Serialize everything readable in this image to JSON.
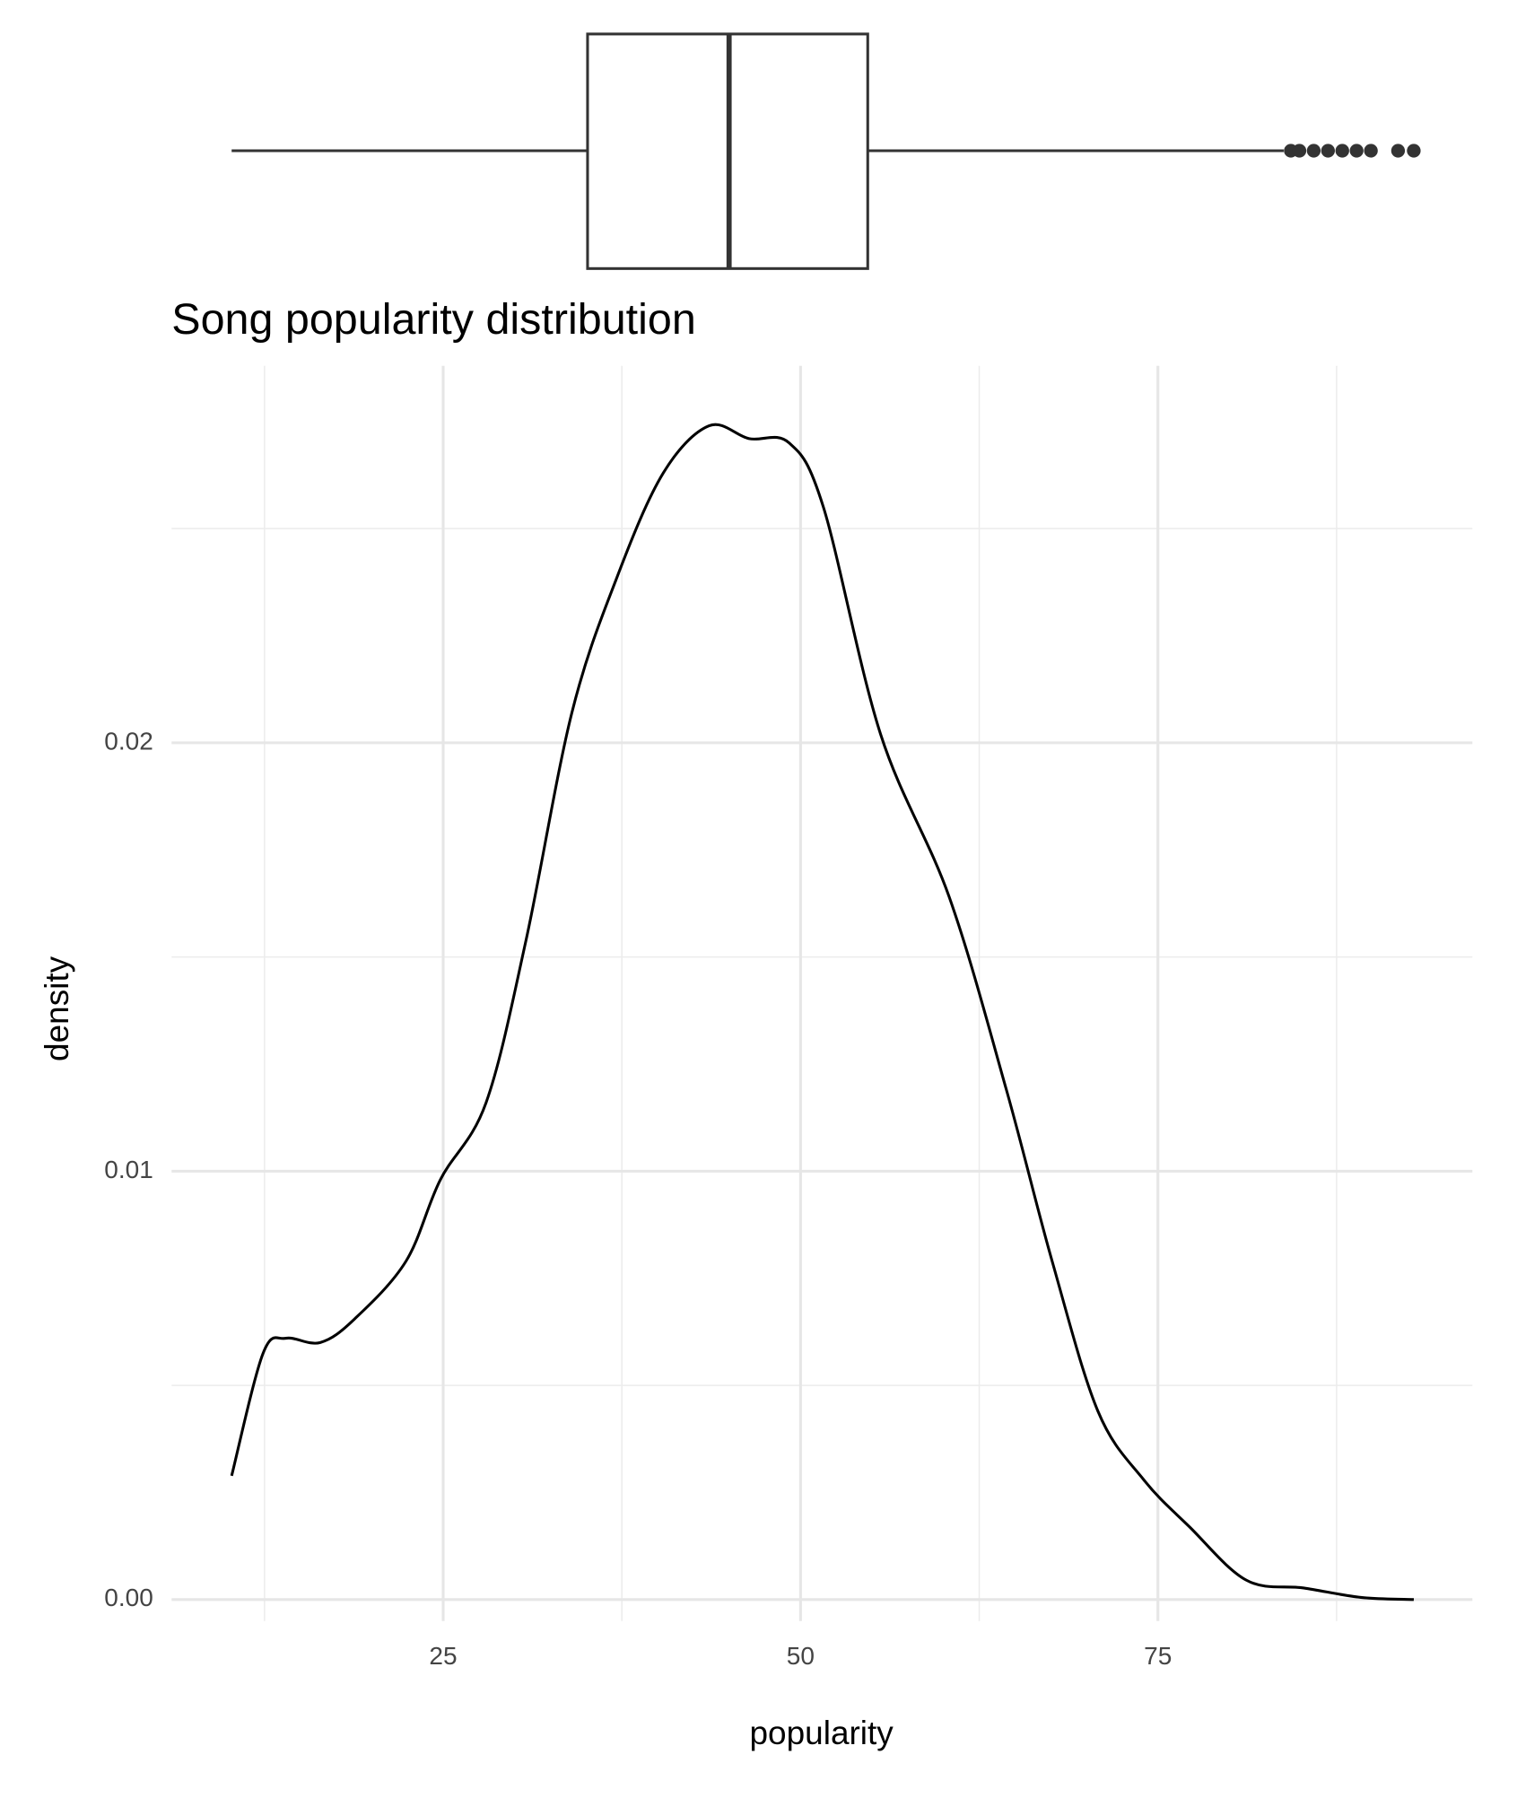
{
  "chart_data": [
    {
      "type": "boxplot",
      "stats": {
        "whisker_low": 10.2,
        "q1": 35.1,
        "median": 45.0,
        "q3": 54.7,
        "whisker_high": 83.8
      },
      "outliers": [
        84.3,
        84.9,
        85.9,
        86.9,
        87.9,
        88.9,
        89.9,
        91.8,
        92.9
      ],
      "color": "#333333",
      "xlim": [
        6.0,
        97.0
      ]
    },
    {
      "type": "density",
      "title": "Song popularity distribution",
      "x_label": "popularity",
      "y_label": "density",
      "x": [
        10.2,
        12.4,
        14,
        16.4,
        18.8,
        22.4,
        24.8,
        28,
        30.8,
        34,
        37.2,
        40.4,
        43.6,
        46.4,
        49.2,
        51.6,
        55.6,
        60.4,
        64.4,
        67.6,
        70.8,
        74,
        77.2,
        81.2,
        85.2,
        89.2,
        92.9
      ],
      "values": [
        0.00289,
        0.00575,
        0.0061,
        0.006,
        0.00655,
        0.0079,
        0.0098,
        0.0116,
        0.0154,
        0.0207,
        0.0239,
        0.0263,
        0.0274,
        0.0271,
        0.027,
        0.0255,
        0.0202,
        0.0164,
        0.0119,
        0.0079,
        0.0044,
        0.0028,
        0.0017,
        0.00045,
        0.00027,
        5e-05,
        0
      ],
      "color": "#000000",
      "xlim": [
        6.0,
        97.0
      ],
      "xticks": [
        25,
        50,
        75
      ],
      "xminor": [
        12.5,
        37.5,
        62.5,
        87.5
      ],
      "ylim": [
        -0.0005,
        0.0288
      ],
      "yticks": [
        {
          "value": 0,
          "label": "0.00"
        },
        {
          "value": 0.01,
          "label": "0.01"
        },
        {
          "value": 0.02,
          "label": "0.02"
        }
      ],
      "yminor": [
        0.005,
        0.015,
        0.025
      ],
      "grid": true
    }
  ]
}
